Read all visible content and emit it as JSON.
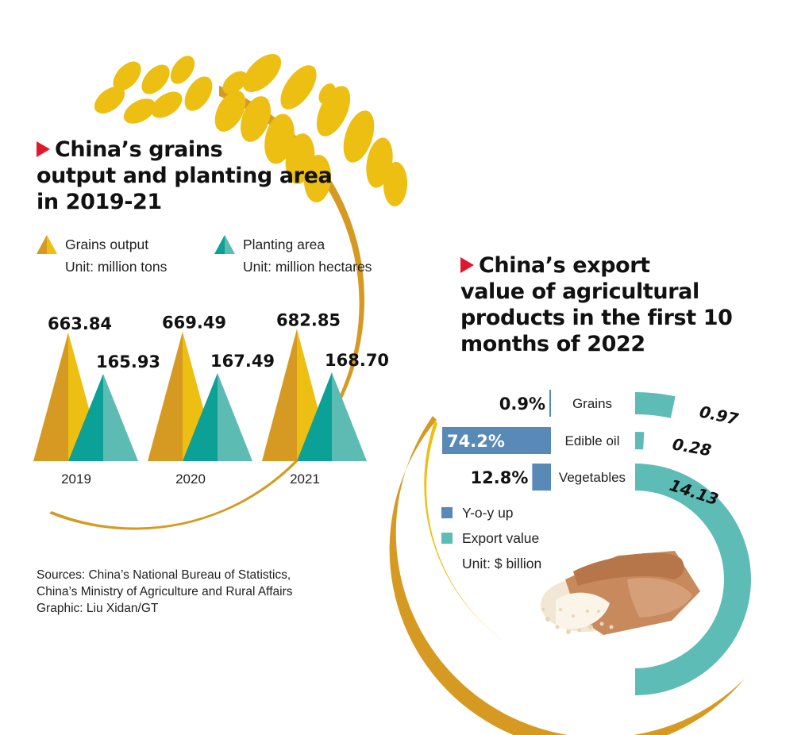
{
  "colors": {
    "gold_dark": "#d69a22",
    "gold_light": "#ecbf12",
    "teal_dark": "#0ba196",
    "teal_light": "#5cbcb4",
    "blue": "#5889b7",
    "teal_arc": "#5ebcb6",
    "red_marker": "#e0182d"
  },
  "icons": [
    "wheat-icon",
    "grain-sack-icon",
    "title-triangle-icon"
  ],
  "chart_data": [
    {
      "type": "bar",
      "title": "China’s grains output and planting area in 2019-21",
      "title_lines": [
        "China’s grains",
        "output and planting area",
        "in 2019-21"
      ],
      "categories": [
        "2019",
        "2020",
        "2021"
      ],
      "series": [
        {
          "name": "Grains output",
          "unit": "Unit: million tons",
          "values": [
            663.84,
            669.49,
            682.85
          ],
          "labels": [
            "663.84",
            "669.49",
            "682.85"
          ]
        },
        {
          "name": "Planting area",
          "unit": "Unit: million hectares",
          "values": [
            165.93,
            167.49,
            168.7
          ],
          "labels": [
            "165.93",
            "167.49",
            "168.70"
          ]
        }
      ],
      "xlabel": "",
      "ylabel": "",
      "grid": false,
      "legend": "top-left"
    },
    {
      "type": "bar",
      "title": "China’s export value of agricultural products in the first 10 months of 2022",
      "title_lines": [
        "China’s export",
        "value of agricultural",
        "products in the first 10",
        "months of 2022"
      ],
      "categories": [
        "Grains",
        "Edible oil",
        "Vegetables"
      ],
      "series": [
        {
          "name": "Y-o-y up",
          "values": [
            0.9,
            74.2,
            12.8
          ],
          "labels": [
            "0.9%",
            "74.2%",
            "12.8%"
          ]
        },
        {
          "name": "Export value",
          "unit": "Unit: $ billion",
          "values": [
            0.97,
            0.28,
            14.13
          ],
          "labels": [
            "0.97",
            "0.28",
            "14.13"
          ]
        }
      ],
      "xlabel": "",
      "ylabel": "",
      "grid": false,
      "legend": "bottom-left"
    }
  ],
  "sources": [
    "Sources: China’s National Bureau of Statistics,",
    "China’s Ministry of Agriculture and Rural Affairs",
    "Graphic: Liu Xidan/GT"
  ]
}
